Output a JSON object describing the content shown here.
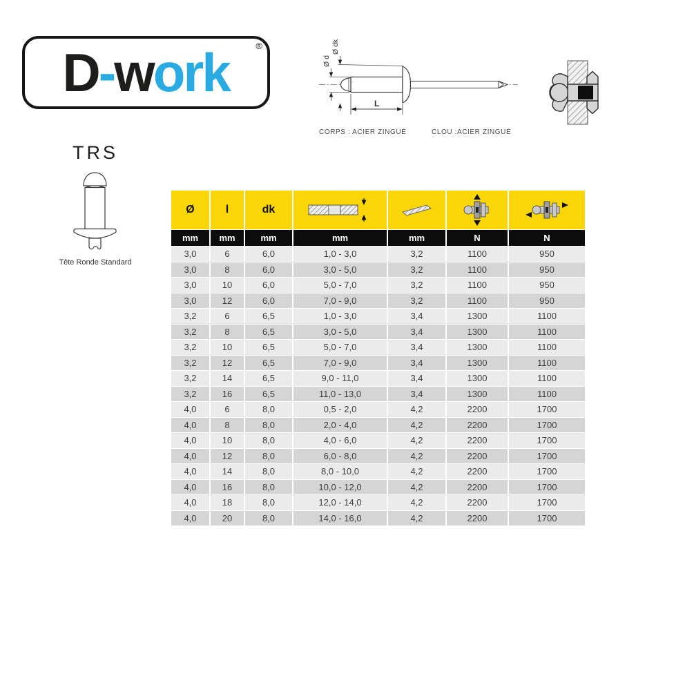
{
  "logo": {
    "parts": [
      {
        "text": "D",
        "color": "#1d1d1b"
      },
      {
        "text": "-",
        "color": "#29abe2"
      },
      {
        "text": "w",
        "color": "#1d1d1b"
      },
      {
        "text": "ork",
        "color": "#29abe2"
      }
    ],
    "registered": "®"
  },
  "diagram": {
    "dim_d": "Ø d",
    "dim_dk": "Ø dk",
    "dim_l": "L",
    "caption_body": "CORPS : ACIER ZINGUÉ",
    "caption_nail": "CLOU :ACIER ZINGUÉ"
  },
  "product": {
    "code": "TRS",
    "caption": "Tête Ronde Standard"
  },
  "table": {
    "colors": {
      "header_bg": "#fbd606",
      "units_bg": "#0c0c0c",
      "row_light": "#ebebeb",
      "row_dark": "#d5d5d5"
    },
    "headers": [
      {
        "label": "Ø"
      },
      {
        "label": "l"
      },
      {
        "label": "dk"
      },
      {
        "icon": "clamp-range-icon"
      },
      {
        "icon": "drill-bit-icon"
      },
      {
        "icon": "tensile-strength-icon"
      },
      {
        "icon": "shear-strength-icon"
      }
    ],
    "units": [
      "mm",
      "mm",
      "mm",
      "mm",
      "mm",
      "N",
      "N"
    ],
    "rows": [
      [
        "3,0",
        "6",
        "6,0",
        "1,0 - 3,0",
        "3,2",
        "1100",
        "950"
      ],
      [
        "3,0",
        "8",
        "6,0",
        "3,0 - 5,0",
        "3,2",
        "1100",
        "950"
      ],
      [
        "3,0",
        "10",
        "6,0",
        "5,0 - 7,0",
        "3,2",
        "1100",
        "950"
      ],
      [
        "3,0",
        "12",
        "6,0",
        "7,0 - 9,0",
        "3,2",
        "1100",
        "950"
      ],
      [
        "3,2",
        "6",
        "6,5",
        "1,0 - 3,0",
        "3,4",
        "1300",
        "1100"
      ],
      [
        "3,2",
        "8",
        "6,5",
        "3,0 - 5,0",
        "3,4",
        "1300",
        "1100"
      ],
      [
        "3,2",
        "10",
        "6,5",
        "5,0 - 7,0",
        "3,4",
        "1300",
        "1100"
      ],
      [
        "3,2",
        "12",
        "6,5",
        "7,0 - 9,0",
        "3,4",
        "1300",
        "1100"
      ],
      [
        "3,2",
        "14",
        "6,5",
        "9,0 - 11,0",
        "3,4",
        "1300",
        "1100"
      ],
      [
        "3,2",
        "16",
        "6,5",
        "11,0 - 13,0",
        "3,4",
        "1300",
        "1100"
      ],
      [
        "4,0",
        "6",
        "8,0",
        "0,5 - 2,0",
        "4,2",
        "2200",
        "1700"
      ],
      [
        "4,0",
        "8",
        "8,0",
        "2,0 - 4,0",
        "4,2",
        "2200",
        "1700"
      ],
      [
        "4,0",
        "10",
        "8,0",
        "4,0 - 6,0",
        "4,2",
        "2200",
        "1700"
      ],
      [
        "4,0",
        "12",
        "8,0",
        "6,0 - 8,0",
        "4,2",
        "2200",
        "1700"
      ],
      [
        "4,0",
        "14",
        "8,0",
        "8,0 - 10,0",
        "4,2",
        "2200",
        "1700"
      ],
      [
        "4,0",
        "16",
        "8,0",
        "10,0 - 12,0",
        "4,2",
        "2200",
        "1700"
      ],
      [
        "4,0",
        "18",
        "8,0",
        "12,0 - 14,0",
        "4,2",
        "2200",
        "1700"
      ],
      [
        "4,0",
        "20",
        "8,0",
        "14,0 - 16,0",
        "4,2",
        "2200",
        "1700"
      ]
    ]
  }
}
